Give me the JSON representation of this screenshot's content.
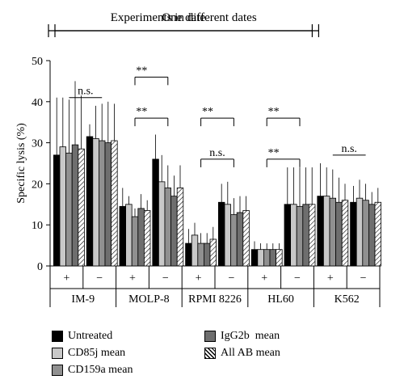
{
  "chart_data": {
    "type": "bar",
    "ylabel": "Specific lysis (%)",
    "ylim": [
      0,
      50
    ],
    "yticks": [
      0,
      10,
      20,
      30,
      40,
      50
    ],
    "header_groups": [
      {
        "label": "Experiments in different dates",
        "span": [
          "IM-9",
          "HL60"
        ]
      },
      {
        "label": "One date",
        "span": [
          "K562"
        ]
      }
    ],
    "cell_lines": [
      "IM-9",
      "MOLP-8",
      "RPMI 8226",
      "HL60",
      "K562"
    ],
    "conditions": [
      "+",
      "−"
    ],
    "series": [
      {
        "name": "Untreated",
        "fill": "#000000"
      },
      {
        "name": "CD85j mean",
        "fill": "#c8c8c8"
      },
      {
        "name": "CD159a mean",
        "fill": "#909090"
      },
      {
        "name": "IgG2b  mean",
        "fill": "#6e6e6e"
      },
      {
        "name": "All AB mean",
        "fill": "hatch"
      }
    ],
    "groups": [
      {
        "cell_line": "IM-9",
        "condition": "+",
        "values": [
          27,
          29,
          27.5,
          29.5,
          28.5
        ],
        "errors": [
          14,
          12,
          13,
          15.5,
          13
        ]
      },
      {
        "cell_line": "IM-9",
        "condition": "−",
        "values": [
          31.5,
          31,
          30.5,
          30,
          30.5
        ],
        "errors": [
          3,
          8,
          9,
          10,
          9
        ]
      },
      {
        "cell_line": "MOLP-8",
        "condition": "+",
        "values": [
          14.5,
          15,
          12,
          14,
          13.5
        ],
        "errors": [
          4.5,
          2,
          2,
          3.5,
          2.5
        ]
      },
      {
        "cell_line": "MOLP-8",
        "condition": "−",
        "values": [
          26,
          20.5,
          19,
          17,
          19
        ],
        "errors": [
          6,
          6.5,
          5.5,
          5,
          5.5
        ]
      },
      {
        "cell_line": "RPMI 8226",
        "condition": "+",
        "values": [
          5.5,
          7.5,
          5.5,
          5.5,
          6.5
        ],
        "errors": [
          3.5,
          3,
          2.5,
          2.5,
          3
        ]
      },
      {
        "cell_line": "RPMI 8226",
        "condition": "−",
        "values": [
          15.5,
          15,
          12.5,
          13,
          13.5
        ],
        "errors": [
          4.5,
          5.5,
          4,
          4,
          3.5
        ]
      },
      {
        "cell_line": "HL60",
        "condition": "+",
        "values": [
          4,
          4,
          4,
          4,
          4
        ],
        "errors": [
          2,
          1.5,
          1.5,
          1.5,
          1.5
        ]
      },
      {
        "cell_line": "HL60",
        "condition": "−",
        "values": [
          15,
          15,
          14.5,
          15,
          15
        ],
        "errors": [
          9,
          9,
          9.5,
          9,
          9
        ]
      },
      {
        "cell_line": "K562",
        "condition": "+",
        "values": [
          17,
          17,
          16.5,
          15.5,
          16
        ],
        "errors": [
          8,
          7,
          7,
          6,
          4
        ]
      },
      {
        "cell_line": "K562",
        "condition": "−",
        "values": [
          15.5,
          16.5,
          16,
          15,
          15.5
        ],
        "errors": [
          4,
          4.5,
          4,
          3,
          3.5
        ]
      }
    ],
    "significance": [
      {
        "label": "n.s.",
        "between": [
          0,
          1
        ],
        "type": "line",
        "level": 41
      },
      {
        "label": "**",
        "between": [
          2,
          3
        ],
        "type": "bracket",
        "level": 36
      },
      {
        "label": "**",
        "between": [
          3,
          2
        ],
        "type": "bracket",
        "level": 46
      },
      {
        "label": "n.s.",
        "between": [
          4,
          5
        ],
        "type": "bracket",
        "level": 26
      },
      {
        "label": "**",
        "between": [
          5,
          4
        ],
        "type": "bracket",
        "level": 36
      },
      {
        "label": "**",
        "between": [
          6,
          7
        ],
        "type": "bracket",
        "level": 26
      },
      {
        "label": "**",
        "between": [
          7,
          6
        ],
        "type": "bracket",
        "level": 36
      },
      {
        "label": "n.s.",
        "between": [
          8,
          9
        ],
        "type": "line",
        "level": 27
      }
    ]
  }
}
